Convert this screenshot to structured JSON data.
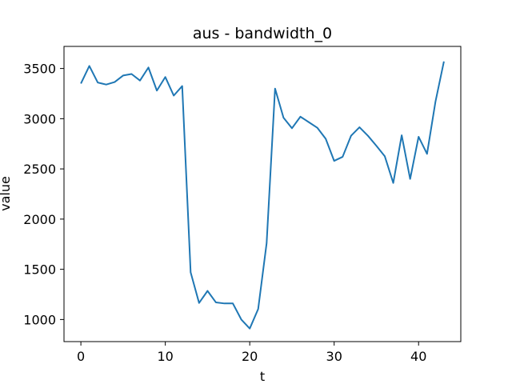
{
  "chart_data": {
    "type": "line",
    "title": "aus - bandwidth_0",
    "xlabel": "t",
    "ylabel": "value",
    "xlim": [
      -2,
      45
    ],
    "ylim": [
      780,
      3720
    ],
    "xticks": [
      0,
      10,
      20,
      30,
      40
    ],
    "yticks": [
      1000,
      1500,
      2000,
      2500,
      3000,
      3500
    ],
    "grid": false,
    "legend": "none",
    "line_color": "#1f77b4",
    "series": [
      {
        "x": [
          0,
          1,
          2,
          3,
          4,
          5,
          6,
          7,
          8,
          9,
          10,
          11,
          12,
          13,
          14,
          15,
          16,
          17,
          18,
          19,
          20,
          21,
          22,
          23,
          24,
          25,
          26,
          27,
          28,
          29,
          30,
          31,
          32,
          33,
          34,
          35,
          36,
          37,
          38,
          39,
          40,
          41,
          42,
          43
        ],
        "values": [
          3350,
          3525,
          3360,
          3340,
          3365,
          3430,
          3445,
          3380,
          3510,
          3280,
          3415,
          3230,
          3325,
          1470,
          1165,
          1285,
          1170,
          1160,
          1160,
          1000,
          910,
          1105,
          1760,
          3300,
          3010,
          2905,
          3020,
          2965,
          2910,
          2800,
          2580,
          2620,
          2830,
          2915,
          2830,
          2730,
          2625,
          2360,
          2835,
          2400,
          2820,
          2650,
          3170,
          3570
        ]
      }
    ]
  }
}
